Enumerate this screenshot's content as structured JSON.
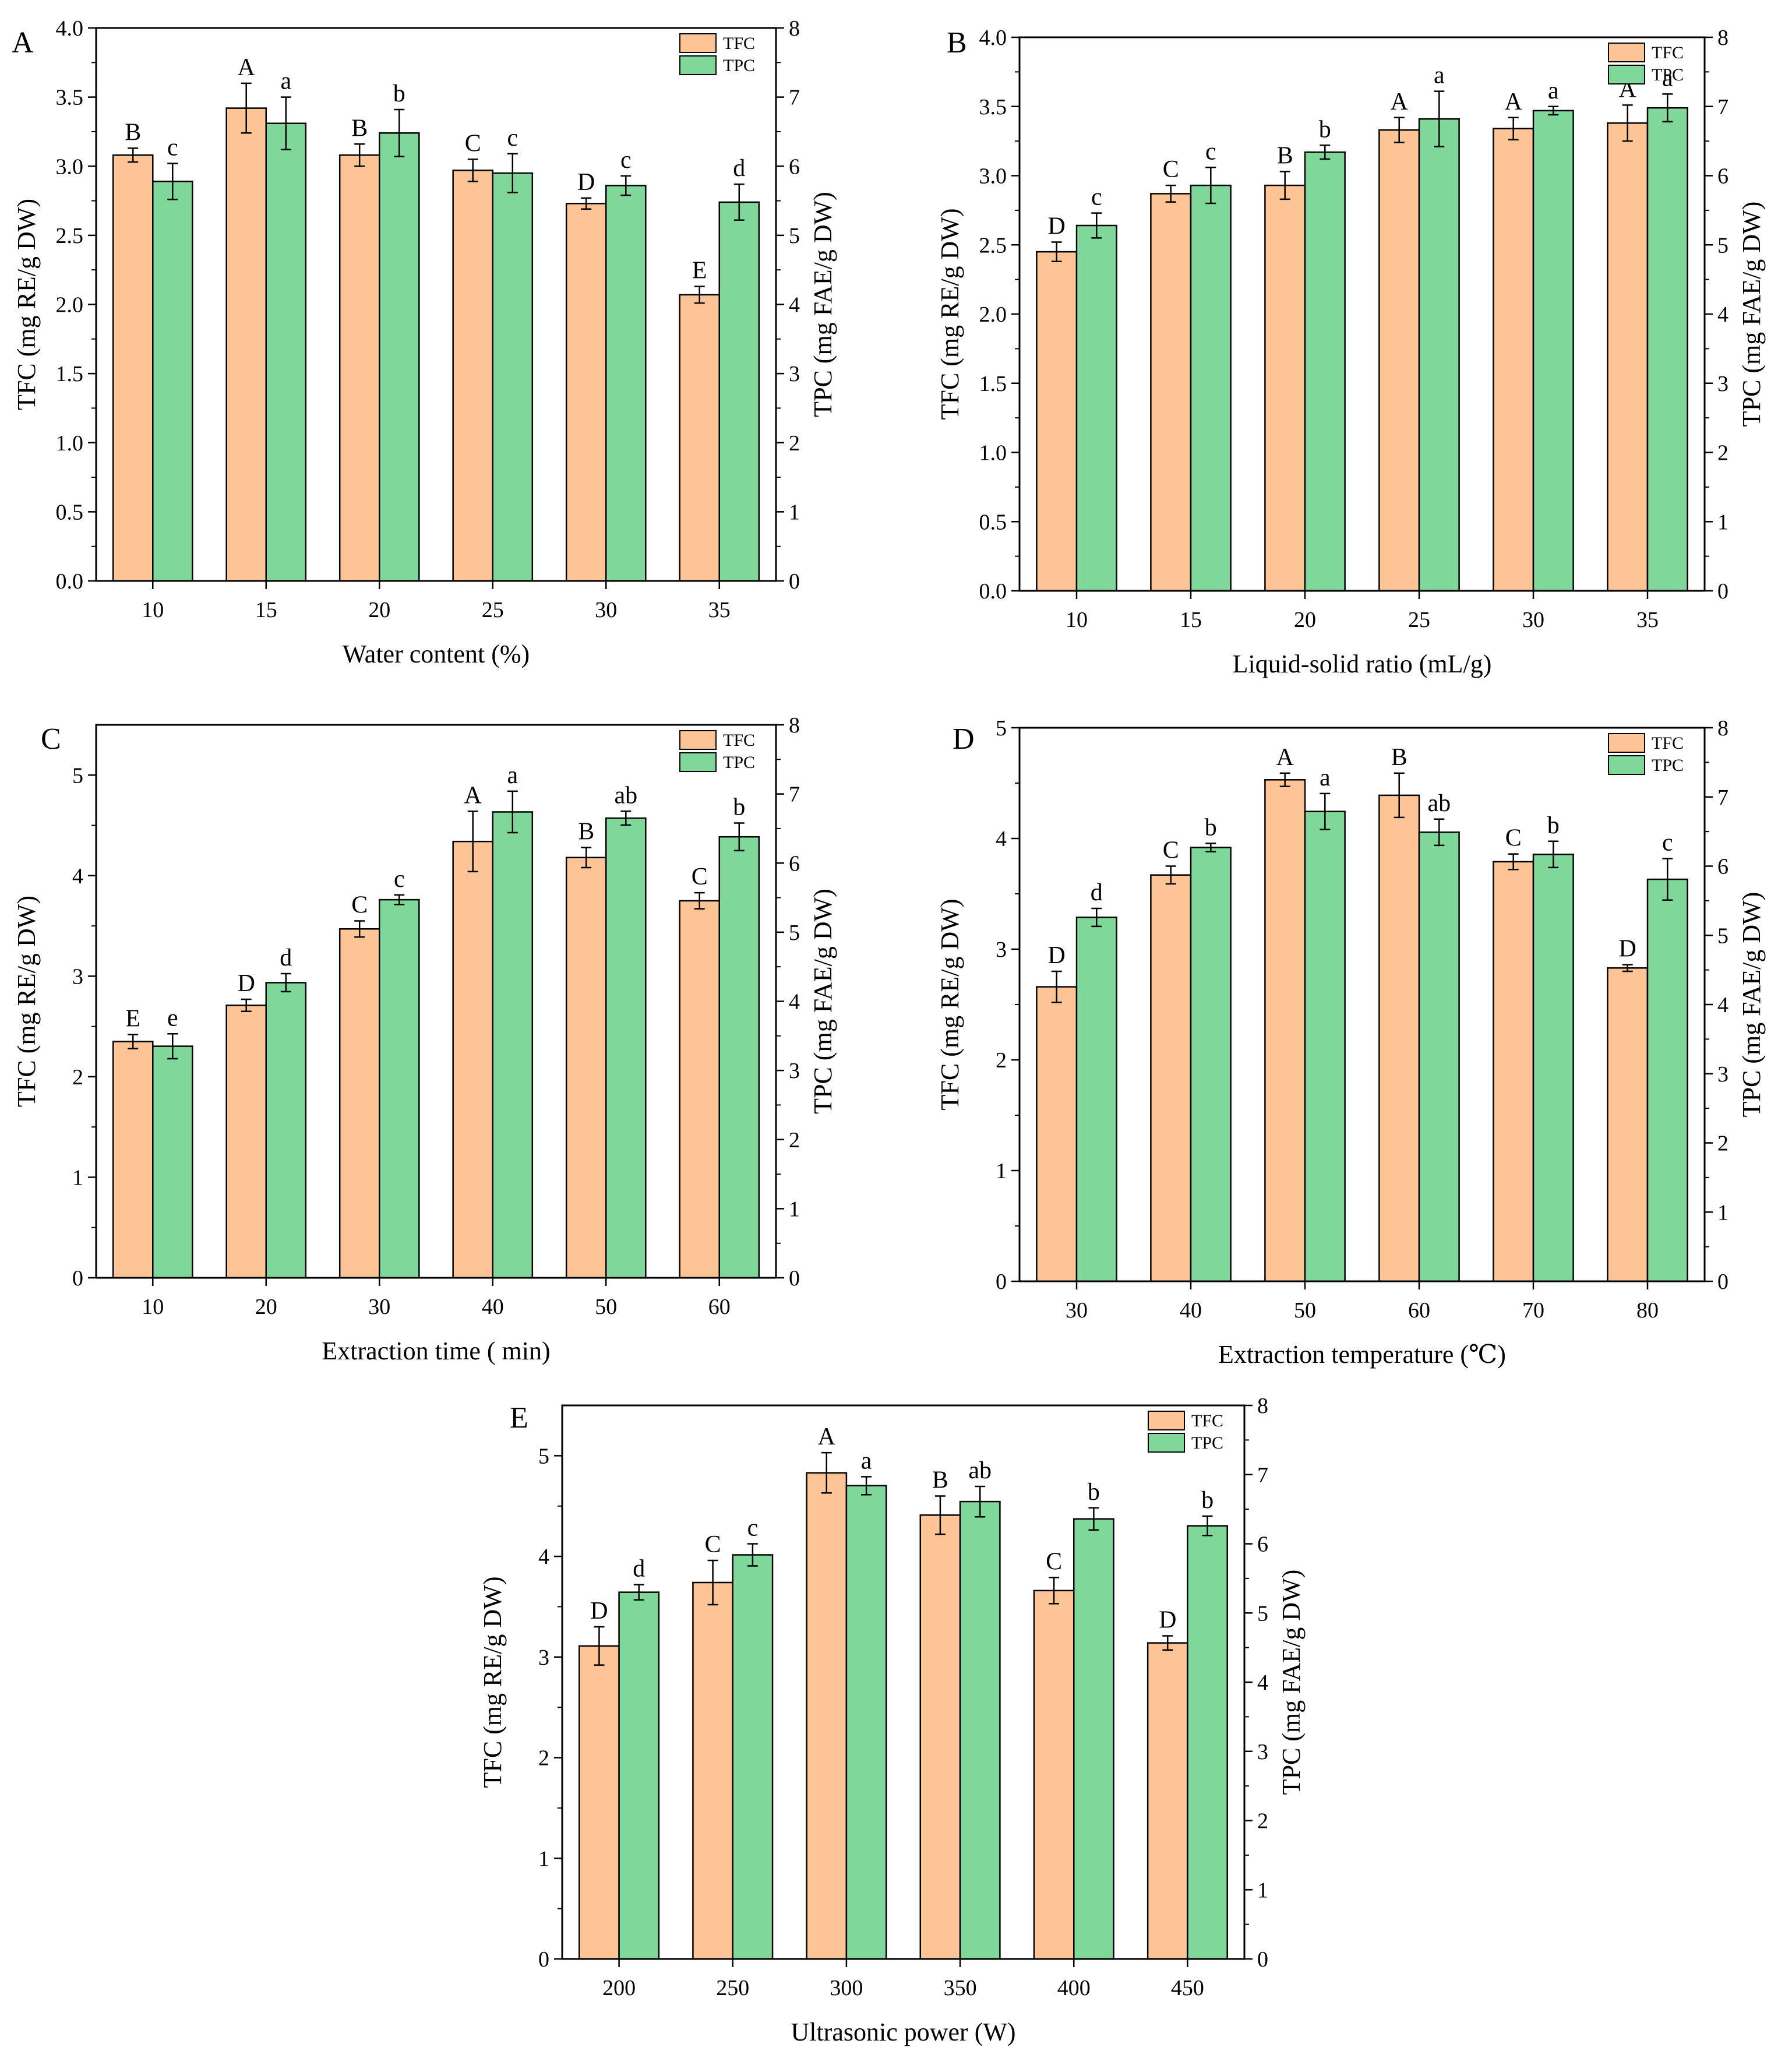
{
  "colors": {
    "TFC": "#fdc596",
    "TPC": "#7fd89a",
    "axis": "#000000"
  },
  "chart_data": [
    {
      "type": "bar",
      "panel_label": "A",
      "title": "",
      "xlabel": "Water content (%)",
      "ylabel": "TFC (mg RE/g DW)",
      "y2label": "TPC (mg FAE/g DW)",
      "categories": [
        "10",
        "15",
        "20",
        "25",
        "30",
        "35"
      ],
      "ylim": [
        0,
        4.0
      ],
      "y2lim": [
        0,
        8
      ],
      "yticks": [
        "0.0",
        "0.5",
        "1.0",
        "1.5",
        "2.0",
        "2.5",
        "3.0",
        "3.5",
        "4.0"
      ],
      "y2ticks": [
        "0",
        "1",
        "2",
        "3",
        "4",
        "5",
        "6",
        "7",
        "8"
      ],
      "legend_position": "top-right",
      "series": [
        {
          "name": "TFC",
          "axis": "left",
          "values": [
            3.08,
            3.42,
            3.08,
            2.97,
            2.73,
            2.07
          ],
          "errors": [
            0.05,
            0.18,
            0.08,
            0.08,
            0.04,
            0.06
          ],
          "labels": [
            "B",
            "A",
            "B",
            "C",
            "D",
            "E"
          ]
        },
        {
          "name": "TPC",
          "axis": "right",
          "values": [
            5.78,
            6.62,
            6.48,
            5.9,
            5.72,
            5.48
          ],
          "errors": [
            0.26,
            0.38,
            0.34,
            0.28,
            0.14,
            0.26
          ],
          "labels": [
            "c",
            "a",
            "b",
            "c",
            "c",
            "d"
          ]
        }
      ]
    },
    {
      "type": "bar",
      "panel_label": "B",
      "title": "",
      "xlabel": "Liquid-solid ratio (mL/g)",
      "ylabel": "TFC (mg RE/g DW)",
      "y2label": "TPC (mg FAE/g DW)",
      "categories": [
        "10",
        "15",
        "20",
        "25",
        "30",
        "35"
      ],
      "ylim": [
        0,
        4.0
      ],
      "y2lim": [
        0,
        8
      ],
      "yticks": [
        "0.0",
        "0.5",
        "1.0",
        "1.5",
        "2.0",
        "2.5",
        "3.0",
        "3.5",
        "4.0"
      ],
      "y2ticks": [
        "0",
        "1",
        "2",
        "3",
        "4",
        "5",
        "6",
        "7",
        "8"
      ],
      "legend_position": "top-right",
      "series": [
        {
          "name": "TFC",
          "axis": "left",
          "values": [
            2.45,
            2.87,
            2.93,
            3.33,
            3.34,
            3.38
          ],
          "errors": [
            0.07,
            0.06,
            0.1,
            0.09,
            0.08,
            0.13
          ],
          "labels": [
            "D",
            "C",
            "B",
            "A",
            "A",
            "A"
          ]
        },
        {
          "name": "TPC",
          "axis": "right",
          "values": [
            5.28,
            5.86,
            6.34,
            6.82,
            6.94,
            6.98
          ],
          "errors": [
            0.18,
            0.26,
            0.1,
            0.4,
            0.06,
            0.2
          ],
          "labels": [
            "c",
            "c",
            "b",
            "a",
            "a",
            "a"
          ]
        }
      ]
    },
    {
      "type": "bar",
      "panel_label": "C",
      "title": "",
      "xlabel": "Extraction  time ( min)",
      "ylabel": "TFC (mg RE/g DW)",
      "y2label": "TPC (mg FAE/g DW)",
      "categories": [
        "10",
        "20",
        "30",
        "40",
        "50",
        "60"
      ],
      "ylim": [
        0,
        5.5
      ],
      "y2lim": [
        0,
        8
      ],
      "yticks": [
        "0",
        "1",
        "2",
        "3",
        "4",
        "5"
      ],
      "y2ticks": [
        "0",
        "1",
        "2",
        "3",
        "4",
        "5",
        "6",
        "7",
        "8"
      ],
      "legend_position": "top-right",
      "series": [
        {
          "name": "TFC",
          "axis": "left",
          "values": [
            2.35,
            2.71,
            3.47,
            4.34,
            4.18,
            3.75
          ],
          "errors": [
            0.07,
            0.06,
            0.08,
            0.3,
            0.1,
            0.08
          ],
          "labels": [
            "E",
            "D",
            "C",
            "A",
            "B",
            "C"
          ]
        },
        {
          "name": "TPC",
          "axis": "right",
          "values": [
            3.35,
            4.27,
            5.47,
            6.74,
            6.65,
            6.38
          ],
          "errors": [
            0.18,
            0.13,
            0.07,
            0.3,
            0.1,
            0.2
          ],
          "labels": [
            "e",
            "d",
            "c",
            "a",
            "ab",
            "b"
          ]
        }
      ]
    },
    {
      "type": "bar",
      "panel_label": "D",
      "title": "",
      "xlabel": "Extraction  temperature (℃)",
      "ylabel": "TFC (mg RE/g DW)",
      "y2label": "TPC (mg FAE/g DW)",
      "categories": [
        "30",
        "40",
        "50",
        "60",
        "70",
        "80"
      ],
      "ylim": [
        0,
        5
      ],
      "y2lim": [
        0,
        8
      ],
      "yticks": [
        "0",
        "1",
        "2",
        "3",
        "4",
        "5"
      ],
      "y2ticks": [
        "0",
        "1",
        "2",
        "3",
        "4",
        "5",
        "6",
        "7",
        "8"
      ],
      "legend_position": "top-right",
      "series": [
        {
          "name": "TFC",
          "axis": "left",
          "values": [
            2.66,
            3.67,
            4.53,
            4.39,
            3.79,
            2.83
          ],
          "errors": [
            0.14,
            0.08,
            0.06,
            0.2,
            0.07,
            0.03
          ],
          "labels": [
            "D",
            "C",
            "A",
            "B",
            "C",
            "D"
          ]
        },
        {
          "name": "TPC",
          "axis": "right",
          "values": [
            5.26,
            6.27,
            6.79,
            6.49,
            6.17,
            5.81
          ],
          "errors": [
            0.13,
            0.06,
            0.26,
            0.19,
            0.19,
            0.3
          ],
          "labels": [
            "d",
            "b",
            "a",
            "ab",
            "b",
            "c"
          ]
        }
      ]
    },
    {
      "type": "bar",
      "panel_label": "E",
      "title": "",
      "xlabel": "Ultrasonic power (W)",
      "ylabel": "TFC (mg RE/g DW)",
      "y2label": "TPC (mg FAE/g DW)",
      "categories": [
        "200",
        "250",
        "300",
        "350",
        "400",
        "450"
      ],
      "ylim": [
        0,
        5.5
      ],
      "y2lim": [
        0,
        8
      ],
      "yticks": [
        "0",
        "1",
        "2",
        "3",
        "4",
        "5"
      ],
      "y2ticks": [
        "0",
        "1",
        "2",
        "3",
        "4",
        "5",
        "6",
        "7",
        "8"
      ],
      "legend_position": "top-right",
      "series": [
        {
          "name": "TFC",
          "axis": "left",
          "values": [
            3.11,
            3.74,
            4.83,
            4.41,
            3.66,
            3.14
          ],
          "errors": [
            0.19,
            0.22,
            0.2,
            0.19,
            0.13,
            0.07
          ],
          "labels": [
            "D",
            "C",
            "A",
            "B",
            "C",
            "D"
          ]
        },
        {
          "name": "TPC",
          "axis": "right",
          "values": [
            5.3,
            5.84,
            6.84,
            6.61,
            6.36,
            6.26
          ],
          "errors": [
            0.11,
            0.16,
            0.13,
            0.22,
            0.16,
            0.14
          ],
          "labels": [
            "d",
            "c",
            "a",
            "ab",
            "b",
            "b"
          ]
        }
      ]
    }
  ]
}
